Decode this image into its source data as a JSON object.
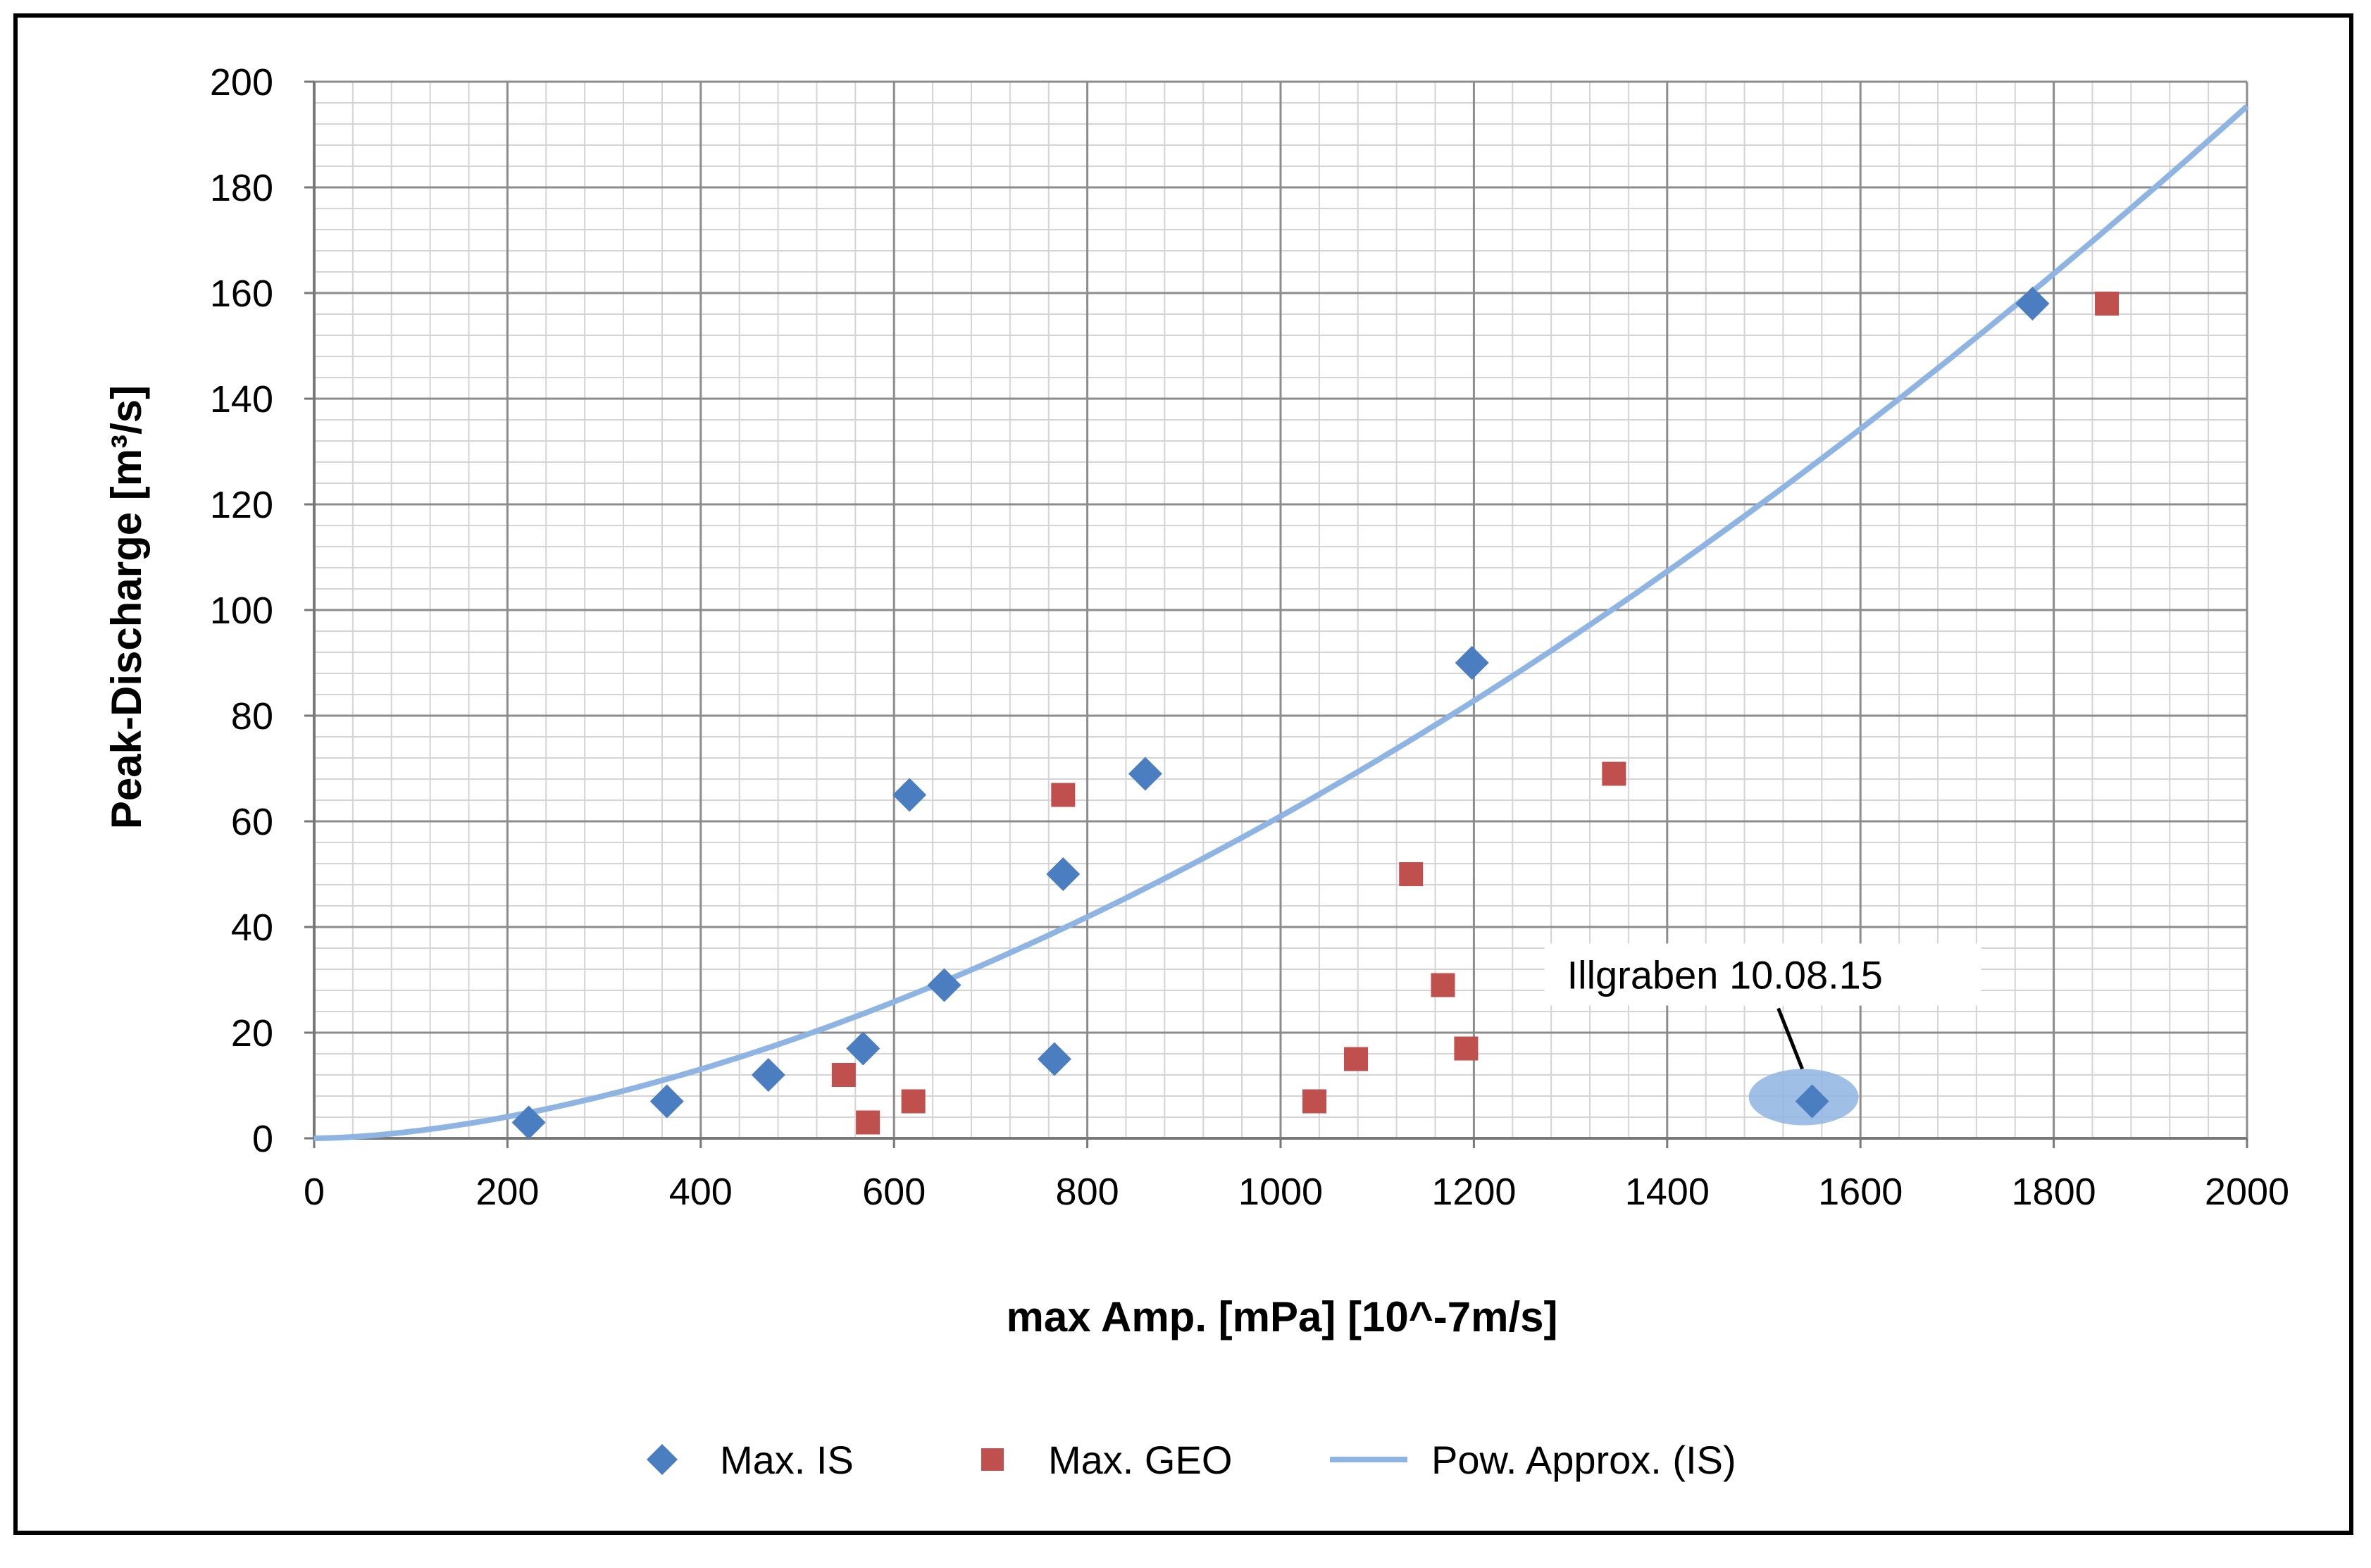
{
  "chart_data": {
    "type": "scatter",
    "title": "",
    "xlabel": "max Amp. [mPa] [10^-7m/s]",
    "ylabel": "Peak-Discharge [m³/s]",
    "xlim": [
      0,
      2000
    ],
    "ylim": [
      0,
      200
    ],
    "x_major_step": 200,
    "y_major_step": 20,
    "x_minor_step": 40,
    "y_minor_step": 4,
    "grid": true,
    "x_tick_labels": [
      "0",
      "200",
      "400",
      "600",
      "800",
      "1000",
      "1200",
      "1400",
      "1600",
      "1800",
      "2000"
    ],
    "y_tick_labels": [
      "0",
      "20",
      "40",
      "60",
      "80",
      "100",
      "120",
      "140",
      "160",
      "180",
      "200"
    ],
    "legend_position": "bottom",
    "series": [
      {
        "name": "Max. IS",
        "marker": "diamond",
        "color": "#4a7ec0",
        "points": [
          {
            "x": 222,
            "y": 3
          },
          {
            "x": 365,
            "y": 7
          },
          {
            "x": 470,
            "y": 12
          },
          {
            "x": 568,
            "y": 17
          },
          {
            "x": 616,
            "y": 65
          },
          {
            "x": 652,
            "y": 29
          },
          {
            "x": 766,
            "y": 15
          },
          {
            "x": 775,
            "y": 50
          },
          {
            "x": 860,
            "y": 69
          },
          {
            "x": 1198,
            "y": 90
          },
          {
            "x": 1550,
            "y": 7
          },
          {
            "x": 1778,
            "y": 158
          }
        ]
      },
      {
        "name": "Max. GEO",
        "marker": "square",
        "color": "#c0504d",
        "points": [
          {
            "x": 548,
            "y": 12
          },
          {
            "x": 573,
            "y": 3
          },
          {
            "x": 620,
            "y": 7
          },
          {
            "x": 775,
            "y": 65
          },
          {
            "x": 1035,
            "y": 7
          },
          {
            "x": 1078,
            "y": 15
          },
          {
            "x": 1135,
            "y": 50
          },
          {
            "x": 1168,
            "y": 29
          },
          {
            "x": 1192,
            "y": 17
          },
          {
            "x": 1345,
            "y": 69
          },
          {
            "x": 1855,
            "y": 158
          }
        ]
      },
      {
        "name": "Pow. Approx. (IS)",
        "marker": "line",
        "color": "#8eb4e3",
        "function": "power",
        "coefficient": 0.000556,
        "exponent": 1.68
      }
    ],
    "annotations": [
      {
        "text": "Illgraben 10.08.15",
        "target_x": 1550,
        "target_y": 7
      }
    ]
  }
}
